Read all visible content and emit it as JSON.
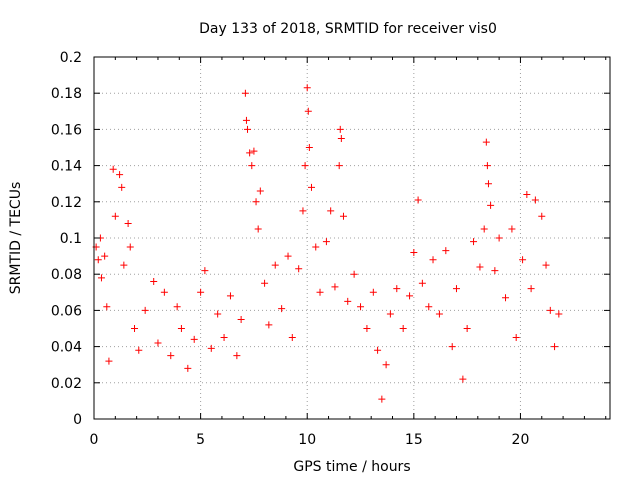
{
  "chart_data": {
    "type": "scatter",
    "title": "Day 133 of 2018, SRMTID for receiver vis0",
    "xlabel": "GPS time / hours",
    "ylabel": "SRMTID / TECUs",
    "xlim": [
      0,
      24.2
    ],
    "ylim": [
      0,
      0.2
    ],
    "xticks": [
      0,
      5,
      10,
      15,
      20
    ],
    "yticks": [
      0,
      0.02,
      0.04,
      0.06,
      0.08,
      0.1,
      0.12,
      0.14,
      0.16,
      0.18,
      0.2
    ],
    "xtick_labels": [
      "0",
      "5",
      "10",
      "15",
      "20"
    ],
    "ytick_labels": [
      "0",
      "0.02",
      "0.04",
      "0.06",
      "0.08",
      "0.1",
      "0.12",
      "0.14",
      "0.16",
      "0.18",
      "0.2"
    ],
    "grid": true,
    "marker": "+",
    "series": [
      {
        "name": "SRMTID",
        "color": "#ff0000",
        "points": [
          [
            0.1,
            0.095
          ],
          [
            0.2,
            0.088
          ],
          [
            0.3,
            0.1
          ],
          [
            0.35,
            0.078
          ],
          [
            0.5,
            0.09
          ],
          [
            0.6,
            0.062
          ],
          [
            0.7,
            0.032
          ],
          [
            0.9,
            0.138
          ],
          [
            1.0,
            0.112
          ],
          [
            1.2,
            0.135
          ],
          [
            1.3,
            0.128
          ],
          [
            1.4,
            0.085
          ],
          [
            1.6,
            0.108
          ],
          [
            1.7,
            0.095
          ],
          [
            1.9,
            0.05
          ],
          [
            2.1,
            0.038
          ],
          [
            2.4,
            0.06
          ],
          [
            2.8,
            0.076
          ],
          [
            3.0,
            0.042
          ],
          [
            3.3,
            0.07
          ],
          [
            3.6,
            0.035
          ],
          [
            3.9,
            0.062
          ],
          [
            4.1,
            0.05
          ],
          [
            4.4,
            0.028
          ],
          [
            4.7,
            0.044
          ],
          [
            5.0,
            0.07
          ],
          [
            5.2,
            0.082
          ],
          [
            5.5,
            0.039
          ],
          [
            5.8,
            0.058
          ],
          [
            6.1,
            0.045
          ],
          [
            6.4,
            0.068
          ],
          [
            6.7,
            0.035
          ],
          [
            6.9,
            0.055
          ],
          [
            7.1,
            0.18
          ],
          [
            7.15,
            0.165
          ],
          [
            7.2,
            0.16
          ],
          [
            7.3,
            0.147
          ],
          [
            7.4,
            0.14
          ],
          [
            7.5,
            0.148
          ],
          [
            7.6,
            0.12
          ],
          [
            7.7,
            0.105
          ],
          [
            7.8,
            0.126
          ],
          [
            8.0,
            0.075
          ],
          [
            8.2,
            0.052
          ],
          [
            8.5,
            0.085
          ],
          [
            8.8,
            0.061
          ],
          [
            9.1,
            0.09
          ],
          [
            9.3,
            0.045
          ],
          [
            9.6,
            0.083
          ],
          [
            9.8,
            0.115
          ],
          [
            9.9,
            0.14
          ],
          [
            10.0,
            0.183
          ],
          [
            10.05,
            0.17
          ],
          [
            10.1,
            0.15
          ],
          [
            10.2,
            0.128
          ],
          [
            10.4,
            0.095
          ],
          [
            10.6,
            0.07
          ],
          [
            10.9,
            0.098
          ],
          [
            11.1,
            0.115
          ],
          [
            11.3,
            0.073
          ],
          [
            11.5,
            0.14
          ],
          [
            11.55,
            0.16
          ],
          [
            11.6,
            0.155
          ],
          [
            11.7,
            0.112
          ],
          [
            11.9,
            0.065
          ],
          [
            12.2,
            0.08
          ],
          [
            12.5,
            0.062
          ],
          [
            12.8,
            0.05
          ],
          [
            13.1,
            0.07
          ],
          [
            13.3,
            0.038
          ],
          [
            13.5,
            0.011
          ],
          [
            13.7,
            0.03
          ],
          [
            13.9,
            0.058
          ],
          [
            14.2,
            0.072
          ],
          [
            14.5,
            0.05
          ],
          [
            14.8,
            0.068
          ],
          [
            15.0,
            0.092
          ],
          [
            15.2,
            0.121
          ],
          [
            15.4,
            0.075
          ],
          [
            15.7,
            0.062
          ],
          [
            15.9,
            0.088
          ],
          [
            16.2,
            0.058
          ],
          [
            16.5,
            0.093
          ],
          [
            16.8,
            0.04
          ],
          [
            17.0,
            0.072
          ],
          [
            17.3,
            0.022
          ],
          [
            17.5,
            0.05
          ],
          [
            17.8,
            0.098
          ],
          [
            18.1,
            0.084
          ],
          [
            18.3,
            0.105
          ],
          [
            18.4,
            0.153
          ],
          [
            18.45,
            0.14
          ],
          [
            18.5,
            0.13
          ],
          [
            18.6,
            0.118
          ],
          [
            18.8,
            0.082
          ],
          [
            19.0,
            0.1
          ],
          [
            19.3,
            0.067
          ],
          [
            19.6,
            0.105
          ],
          [
            19.8,
            0.045
          ],
          [
            20.1,
            0.088
          ],
          [
            20.3,
            0.124
          ],
          [
            20.5,
            0.072
          ],
          [
            20.7,
            0.121
          ],
          [
            21.0,
            0.112
          ],
          [
            21.2,
            0.085
          ],
          [
            21.4,
            0.06
          ],
          [
            21.6,
            0.04
          ],
          [
            21.8,
            0.058
          ]
        ]
      }
    ]
  }
}
